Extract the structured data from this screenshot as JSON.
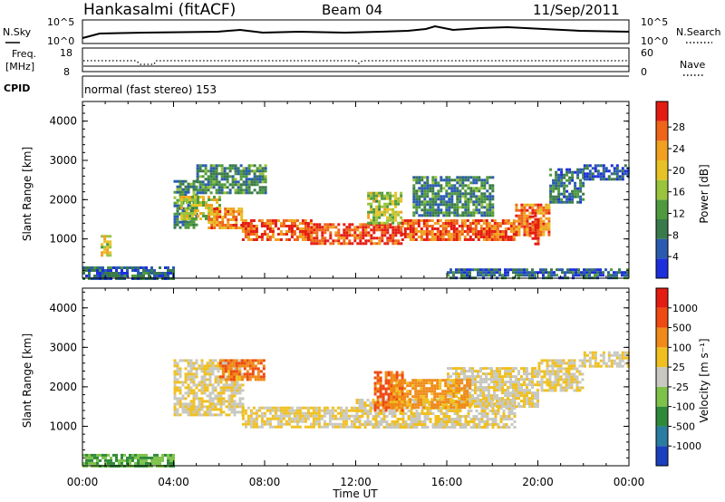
{
  "header": {
    "station": "Hankasalmi (fitACF)",
    "beam": "Beam 04",
    "date": "11/Sep/2011"
  },
  "top_strip": {
    "left_label": "N.Sky",
    "ticks_left": [
      "10^5",
      "10^0"
    ],
    "ticks_right": [
      "10^5",
      "10^0"
    ],
    "right_label": "N.Search"
  },
  "freq_strip": {
    "left_label_line1": "Freq.",
    "left_label_line2": "[MHz]",
    "ticks_left": [
      "18",
      "8"
    ],
    "ticks_right": [
      "60",
      "0"
    ],
    "right_label": "Nave"
  },
  "cpid": {
    "label": "CPID",
    "text": "normal (fast stereo) 153"
  },
  "x_axis": {
    "label": "Time UT",
    "ticks": [
      "00:00",
      "04:00",
      "08:00",
      "12:00",
      "16:00",
      "20:00",
      "00:00"
    ]
  },
  "chart_data": [
    {
      "type": "heatmap",
      "title": "",
      "xlabel": "Time UT",
      "ylabel": "Slant Range [km]",
      "ylim": [
        0,
        4500
      ],
      "yticks": [
        1000,
        2000,
        3000,
        4000
      ],
      "colorbar": {
        "label": "Power [dB]",
        "ticks": [
          4,
          8,
          12,
          16,
          20,
          24,
          28
        ],
        "colors": [
          "#1d2fdc",
          "#2a5bb0",
          "#3a7a4a",
          "#4f9a3e",
          "#9ac43c",
          "#e6c227",
          "#f1a020",
          "#ef6418",
          "#e41c12"
        ]
      },
      "bands": [
        {
          "t0": 0.0,
          "t1": 4.0,
          "r0": 0,
          "r1": 300,
          "level": 0.2
        },
        {
          "t0": 0.8,
          "t1": 1.2,
          "r0": 600,
          "r1": 1100,
          "level": 0.6
        },
        {
          "t0": 4.0,
          "t1": 5.0,
          "r0": 1300,
          "r1": 2500,
          "level": 0.3
        },
        {
          "t0": 4.3,
          "t1": 6.0,
          "r0": 1500,
          "r1": 2100,
          "level": 0.55
        },
        {
          "t0": 5.5,
          "t1": 7.0,
          "r0": 1300,
          "r1": 1800,
          "level": 0.75
        },
        {
          "t0": 7.0,
          "t1": 10.0,
          "r0": 1000,
          "r1": 1500,
          "level": 0.85
        },
        {
          "t0": 10.0,
          "t1": 14.0,
          "r0": 900,
          "r1": 1400,
          "level": 0.9
        },
        {
          "t0": 12.5,
          "t1": 14.0,
          "r0": 1400,
          "r1": 2200,
          "level": 0.5
        },
        {
          "t0": 14.0,
          "t1": 19.0,
          "r0": 1000,
          "r1": 1500,
          "level": 0.85
        },
        {
          "t0": 14.5,
          "t1": 18.0,
          "r0": 1600,
          "r1": 2600,
          "level": 0.3
        },
        {
          "t0": 19.0,
          "t1": 20.5,
          "r0": 1100,
          "r1": 1900,
          "level": 0.8
        },
        {
          "t0": 19.6,
          "t1": 20.0,
          "r0": 900,
          "r1": 1600,
          "level": 1.0
        },
        {
          "t0": 20.5,
          "t1": 22.0,
          "r0": 1900,
          "r1": 2800,
          "level": 0.25
        },
        {
          "t0": 22.0,
          "t1": 24.0,
          "r0": 2500,
          "r1": 2900,
          "level": 0.15
        },
        {
          "t0": 5.0,
          "t1": 8.0,
          "r0": 2200,
          "r1": 2900,
          "level": 0.3
        },
        {
          "t0": 16.0,
          "t1": 24.0,
          "r0": 0,
          "r1": 250,
          "level": 0.2
        }
      ]
    },
    {
      "type": "heatmap",
      "title": "",
      "xlabel": "Time UT",
      "ylabel": "Slant Range [km]",
      "ylim": [
        0,
        4500
      ],
      "yticks": [
        1000,
        2000,
        3000,
        4000
      ],
      "colorbar": {
        "label": "Velocity [m s⁻¹]",
        "ticks": [
          1000,
          500,
          100,
          25,
          -25,
          -100,
          -500,
          -1000
        ],
        "colors": [
          "#1c3fbf",
          "#2a7da0",
          "#2e8a3a",
          "#7ec24a",
          "#c8c8c0",
          "#f0c020",
          "#f08a18",
          "#ef4a12",
          "#e41c12"
        ]
      },
      "bands": [
        {
          "t0": 0.0,
          "t1": 4.0,
          "r0": 0,
          "r1": 300,
          "level": 0.35
        },
        {
          "t0": 4.0,
          "t1": 7.0,
          "r0": 1300,
          "r1": 2700,
          "level": 0.55
        },
        {
          "t0": 7.0,
          "t1": 12.0,
          "r0": 1000,
          "r1": 1500,
          "level": 0.55
        },
        {
          "t0": 12.0,
          "t1": 19.0,
          "r0": 1000,
          "r1": 1700,
          "level": 0.55
        },
        {
          "t0": 12.8,
          "t1": 14.0,
          "r0": 1400,
          "r1": 2400,
          "level": 0.8
        },
        {
          "t0": 6.0,
          "t1": 8.0,
          "r0": 2200,
          "r1": 2700,
          "level": 0.78
        },
        {
          "t0": 16.0,
          "t1": 20.0,
          "r0": 1500,
          "r1": 2500,
          "level": 0.55
        },
        {
          "t0": 20.0,
          "t1": 22.0,
          "r0": 1900,
          "r1": 2700,
          "level": 0.55
        },
        {
          "t0": 22.0,
          "t1": 24.0,
          "r0": 2500,
          "r1": 2900,
          "level": 0.55
        },
        {
          "t0": 13.5,
          "t1": 17.0,
          "r0": 1500,
          "r1": 2200,
          "level": 0.7
        }
      ]
    }
  ]
}
